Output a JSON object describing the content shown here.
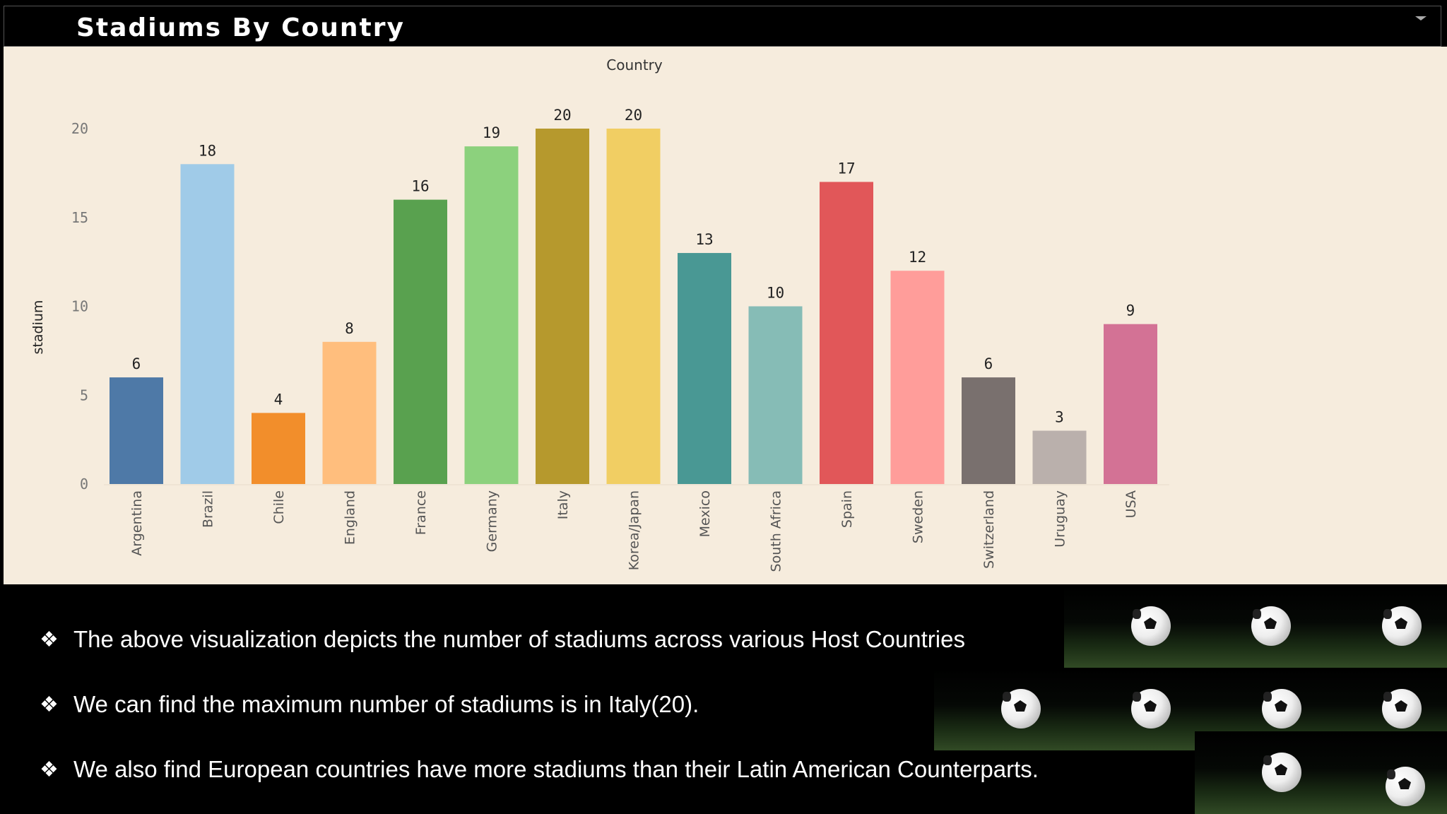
{
  "header": {
    "title": "Stadiums By Country"
  },
  "chart_data": {
    "type": "bar",
    "title": "Country",
    "xlabel": "",
    "ylabel": "stadium",
    "ylim": [
      0,
      23
    ],
    "yticks": [
      0,
      5,
      10,
      15,
      20
    ],
    "categories": [
      "Argentina",
      "Brazil",
      "Chile",
      "England",
      "France",
      "Germany",
      "Italy",
      "Korea/Japan",
      "Mexico",
      "South Africa",
      "Spain",
      "Sweden",
      "Switzerland",
      "Uruguay",
      "USA"
    ],
    "values": [
      6,
      18,
      4,
      8,
      16,
      19,
      20,
      20,
      13,
      10,
      17,
      12,
      6,
      3,
      9
    ],
    "colors": [
      "#4e79a7",
      "#a0cbe8",
      "#f28e2b",
      "#ffbe7d",
      "#59a14f",
      "#8cd17d",
      "#b6992d",
      "#f1ce63",
      "#499894",
      "#86bcb6",
      "#e15759",
      "#ff9d9a",
      "#79706e",
      "#bab0ac",
      "#d37295"
    ],
    "grid": false,
    "legend": "none"
  },
  "bullets": [
    "The above visualization depicts the number of stadiums across various Host Countries",
    "We can find the maximum number of stadiums is in Italy(20).",
    "We also find European countries have more stadiums than their Latin American Counterparts."
  ],
  "icons": {
    "bullet": "four-diamond-bullet-icon",
    "tile": "soccer-ball-icon"
  }
}
